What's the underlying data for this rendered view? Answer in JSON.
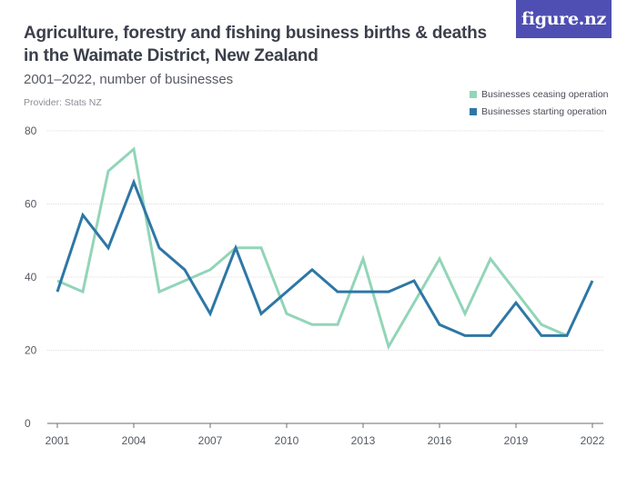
{
  "header": {
    "title": "Agriculture, forestry and fishing business births & deaths in the Waimate District, New Zealand",
    "subtitle": "2001–2022, number of businesses",
    "provider": "Provider: Stats NZ",
    "logo": "figure.nz"
  },
  "chart_data": {
    "type": "line",
    "title": "Agriculture, forestry and fishing business births & deaths in the Waimate District, New Zealand",
    "subtitle": "2001–2022, number of businesses",
    "xlabel": "",
    "ylabel": "",
    "x": [
      2001,
      2002,
      2003,
      2004,
      2005,
      2006,
      2007,
      2008,
      2009,
      2010,
      2011,
      2012,
      2013,
      2014,
      2015,
      2016,
      2017,
      2018,
      2019,
      2020,
      2021,
      2022
    ],
    "xticks": [
      2001,
      2004,
      2007,
      2010,
      2013,
      2016,
      2019,
      2022
    ],
    "yticks": [
      0,
      20,
      40,
      60,
      80
    ],
    "ylim": [
      0,
      80
    ],
    "grid": true,
    "legend_position": "top-right",
    "series": [
      {
        "name": "Businesses ceasing operation",
        "color": "#92d5b8",
        "values": [
          39,
          36,
          69,
          75,
          36,
          39,
          42,
          48,
          48,
          30,
          27,
          27,
          45,
          21,
          33,
          45,
          30,
          45,
          36,
          27,
          24,
          null
        ]
      },
      {
        "name": "Businesses starting operation",
        "color": "#2e77a5",
        "values": [
          36,
          57,
          48,
          66,
          48,
          42,
          30,
          48,
          30,
          36,
          42,
          36,
          36,
          36,
          39,
          27,
          24,
          24,
          33,
          24,
          24,
          39
        ]
      }
    ]
  }
}
